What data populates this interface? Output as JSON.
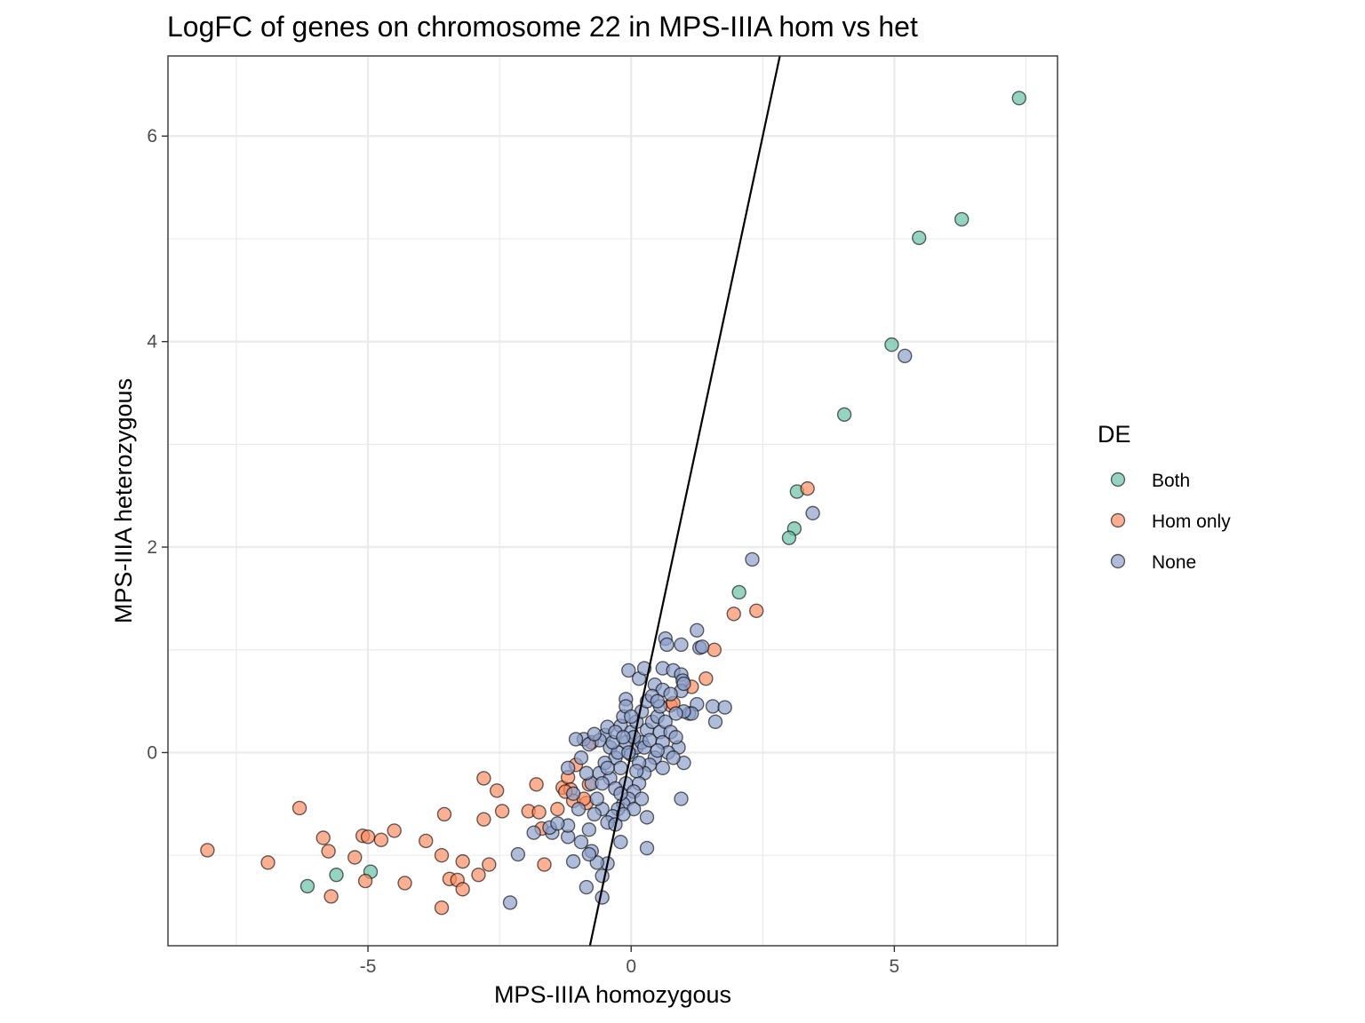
{
  "chart_data": {
    "type": "scatter",
    "title": "LogFC of genes on chromosome 22 in MPS-IIIA hom vs het",
    "xlabel": "MPS-IIIA homozygous",
    "ylabel": "MPS-IIIA heterozygous",
    "xlim": [
      -8.8,
      8.1
    ],
    "ylim": [
      -1.88,
      6.78
    ],
    "x_ticks": [
      -5,
      0,
      5
    ],
    "x_tick_labels": [
      "-5",
      "0",
      "5"
    ],
    "y_ticks": [
      0,
      2,
      4,
      6
    ],
    "y_tick_labels": [
      "0",
      "2",
      "4",
      "6"
    ],
    "grid": true,
    "legend": {
      "title": "DE",
      "position": "right"
    },
    "reference_line": {
      "slope": 2.4,
      "intercept": 0
    },
    "series": [
      {
        "name": "Both",
        "color": "#66c2a5",
        "points": [
          [
            7.37,
            6.37
          ],
          [
            6.28,
            5.19
          ],
          [
            5.47,
            5.01
          ],
          [
            4.95,
            3.97
          ],
          [
            4.05,
            3.29
          ],
          [
            3.15,
            2.54
          ],
          [
            3.1,
            2.18
          ],
          [
            3.0,
            2.09
          ],
          [
            2.05,
            1.56
          ],
          [
            -6.15,
            -1.3
          ],
          [
            -5.6,
            -1.19
          ],
          [
            -4.95,
            -1.16
          ]
        ]
      },
      {
        "name": "Hom only",
        "color": "#fc8d62",
        "points": [
          [
            3.35,
            2.57
          ],
          [
            2.38,
            1.38
          ],
          [
            1.95,
            1.35
          ],
          [
            1.58,
            1.0
          ],
          [
            1.42,
            0.72
          ],
          [
            1.15,
            0.64
          ],
          [
            0.75,
            0.46
          ],
          [
            0.8,
            0.48
          ],
          [
            -8.05,
            -0.95
          ],
          [
            -6.9,
            -1.07
          ],
          [
            -6.3,
            -0.54
          ],
          [
            -5.85,
            -0.83
          ],
          [
            -5.75,
            -0.96
          ],
          [
            -5.7,
            -1.4
          ],
          [
            -5.1,
            -0.81
          ],
          [
            -5.0,
            -0.82
          ],
          [
            -4.75,
            -0.85
          ],
          [
            -4.5,
            -0.76
          ],
          [
            -5.25,
            -1.02
          ],
          [
            -5.05,
            -1.25
          ],
          [
            -4.3,
            -1.27
          ],
          [
            -3.9,
            -0.86
          ],
          [
            -3.6,
            -1.0
          ],
          [
            -3.55,
            -0.6
          ],
          [
            -3.45,
            -1.23
          ],
          [
            -3.3,
            -1.24
          ],
          [
            -3.2,
            -1.06
          ],
          [
            -3.2,
            -1.33
          ],
          [
            -3.6,
            -1.51
          ],
          [
            -2.9,
            -1.19
          ],
          [
            -2.7,
            -1.09
          ],
          [
            -2.8,
            -0.25
          ],
          [
            -2.8,
            -0.65
          ],
          [
            -2.55,
            -0.37
          ],
          [
            -2.45,
            -0.57
          ],
          [
            -1.95,
            -0.57
          ],
          [
            -1.8,
            -0.31
          ],
          [
            -1.75,
            -0.58
          ],
          [
            -1.7,
            -0.74
          ],
          [
            -1.65,
            -1.09
          ],
          [
            -1.4,
            -0.55
          ],
          [
            -1.3,
            -0.34
          ],
          [
            -1.2,
            -0.24
          ],
          [
            -1.15,
            -0.36
          ],
          [
            -1.1,
            -0.47
          ],
          [
            -1.05,
            -0.12
          ],
          [
            -0.85,
            -0.49
          ],
          [
            -0.8,
            -0.31
          ],
          [
            -0.75,
            0.1
          ],
          [
            -0.9,
            -0.45
          ],
          [
            -1.25,
            -0.38
          ]
        ]
      },
      {
        "name": "None",
        "color": "#8da0cb",
        "points": [
          [
            5.2,
            3.86
          ],
          [
            3.45,
            2.33
          ],
          [
            2.3,
            1.88
          ],
          [
            1.25,
            1.19
          ],
          [
            1.3,
            1.02
          ],
          [
            1.35,
            1.03
          ],
          [
            0.65,
            1.11
          ],
          [
            0.68,
            1.05
          ],
          [
            0.95,
            1.05
          ],
          [
            0.6,
            0.82
          ],
          [
            0.8,
            0.8
          ],
          [
            0.95,
            0.76
          ],
          [
            1.25,
            0.47
          ],
          [
            1.55,
            0.45
          ],
          [
            1.78,
            0.44
          ],
          [
            1.6,
            0.3
          ],
          [
            1.1,
            0.38
          ],
          [
            1.15,
            0.38
          ],
          [
            1.0,
            0.4
          ],
          [
            0.85,
            0.38
          ],
          [
            0.98,
            0.7
          ],
          [
            0.95,
            0.6
          ],
          [
            1.0,
            0.67
          ],
          [
            0.9,
            0.05
          ],
          [
            1.0,
            -0.1
          ],
          [
            0.95,
            -0.45
          ],
          [
            0.3,
            -0.93
          ],
          [
            0.3,
            -0.63
          ],
          [
            -0.2,
            -0.87
          ],
          [
            -0.55,
            -1.2
          ],
          [
            -0.45,
            -1.08
          ],
          [
            -0.55,
            -1.41
          ],
          [
            -0.85,
            -1.31
          ],
          [
            -0.65,
            -1.07
          ],
          [
            -1.1,
            -1.06
          ],
          [
            -0.75,
            -0.96
          ],
          [
            -0.8,
            -0.99
          ],
          [
            -0.95,
            -0.87
          ],
          [
            -1.2,
            -0.82
          ],
          [
            -1.2,
            -0.71
          ],
          [
            -1.5,
            -0.78
          ],
          [
            -1.55,
            -0.73
          ],
          [
            -1.4,
            -0.69
          ],
          [
            -1.85,
            -0.78
          ],
          [
            -2.15,
            -0.99
          ],
          [
            -2.3,
            -1.46
          ],
          [
            -0.05,
            0.8
          ],
          [
            -0.1,
            0.52
          ],
          [
            0.15,
            0.72
          ],
          [
            0.25,
            0.82
          ],
          [
            0.45,
            0.66
          ],
          [
            0.6,
            0.61
          ],
          [
            0.75,
            0.57
          ],
          [
            -0.2,
            0.26
          ],
          [
            -0.15,
            0.35
          ],
          [
            -0.5,
            0.17
          ],
          [
            -0.6,
            0.12
          ],
          [
            -0.9,
            0.13
          ],
          [
            -0.8,
            0.08
          ],
          [
            -1.05,
            0.13
          ],
          [
            -0.7,
            0.18
          ],
          [
            -0.4,
            0.05
          ],
          [
            -0.3,
            -0.05
          ],
          [
            -0.2,
            -0.15
          ],
          [
            -0.1,
            -0.3
          ],
          [
            0.0,
            -0.02
          ],
          [
            0.1,
            0.05
          ],
          [
            0.2,
            0.1
          ],
          [
            0.3,
            0.22
          ],
          [
            0.4,
            0.3
          ],
          [
            0.5,
            0.35
          ],
          [
            0.55,
            0.2
          ],
          [
            0.6,
            0.1
          ],
          [
            0.7,
            0.0
          ],
          [
            0.45,
            -0.05
          ],
          [
            0.35,
            -0.12
          ],
          [
            0.25,
            -0.2
          ],
          [
            0.15,
            -0.3
          ],
          [
            0.05,
            -0.38
          ],
          [
            -0.05,
            -0.45
          ],
          [
            -0.15,
            -0.5
          ],
          [
            -0.25,
            -0.55
          ],
          [
            -0.35,
            -0.62
          ],
          [
            -0.45,
            -0.68
          ],
          [
            -0.55,
            -0.55
          ],
          [
            -0.65,
            -0.45
          ],
          [
            -0.75,
            -0.3
          ],
          [
            -0.85,
            -0.2
          ],
          [
            -0.95,
            -0.05
          ],
          [
            -0.6,
            -0.2
          ],
          [
            -0.5,
            -0.1
          ],
          [
            -0.4,
            -0.25
          ],
          [
            -0.3,
            -0.35
          ],
          [
            0.0,
            0.2
          ],
          [
            0.1,
            0.3
          ],
          [
            0.2,
            0.4
          ],
          [
            0.3,
            0.5
          ],
          [
            0.4,
            0.55
          ],
          [
            -0.1,
            0.1
          ],
          [
            0.05,
            0.15
          ],
          [
            0.15,
            -0.1
          ],
          [
            0.25,
            0.05
          ],
          [
            0.35,
            0.12
          ],
          [
            0.5,
            0.02
          ],
          [
            0.6,
            -0.15
          ],
          [
            0.8,
            -0.05
          ],
          [
            -0.25,
            0.0
          ],
          [
            -0.35,
            0.1
          ],
          [
            -0.45,
            -0.15
          ],
          [
            -0.55,
            -0.3
          ],
          [
            -0.2,
            -0.4
          ],
          [
            0.05,
            -0.55
          ],
          [
            -0.3,
            -0.7
          ],
          [
            -0.1,
            0.45
          ],
          [
            0.0,
            0.35
          ],
          [
            -0.05,
            0.0
          ],
          [
            0.1,
            -0.18
          ],
          [
            0.2,
            -0.45
          ],
          [
            -0.15,
            -0.6
          ],
          [
            0.55,
            0.45
          ],
          [
            0.65,
            0.3
          ],
          [
            0.75,
            0.2
          ],
          [
            0.85,
            0.15
          ],
          [
            0.5,
            0.5
          ],
          [
            -0.7,
            -0.6
          ],
          [
            -0.8,
            -0.75
          ],
          [
            -1.0,
            -0.55
          ],
          [
            -1.1,
            -0.4
          ],
          [
            -1.2,
            -0.15
          ],
          [
            -0.45,
            0.25
          ],
          [
            -0.3,
            0.2
          ],
          [
            -0.15,
            0.15
          ]
        ]
      }
    ]
  }
}
